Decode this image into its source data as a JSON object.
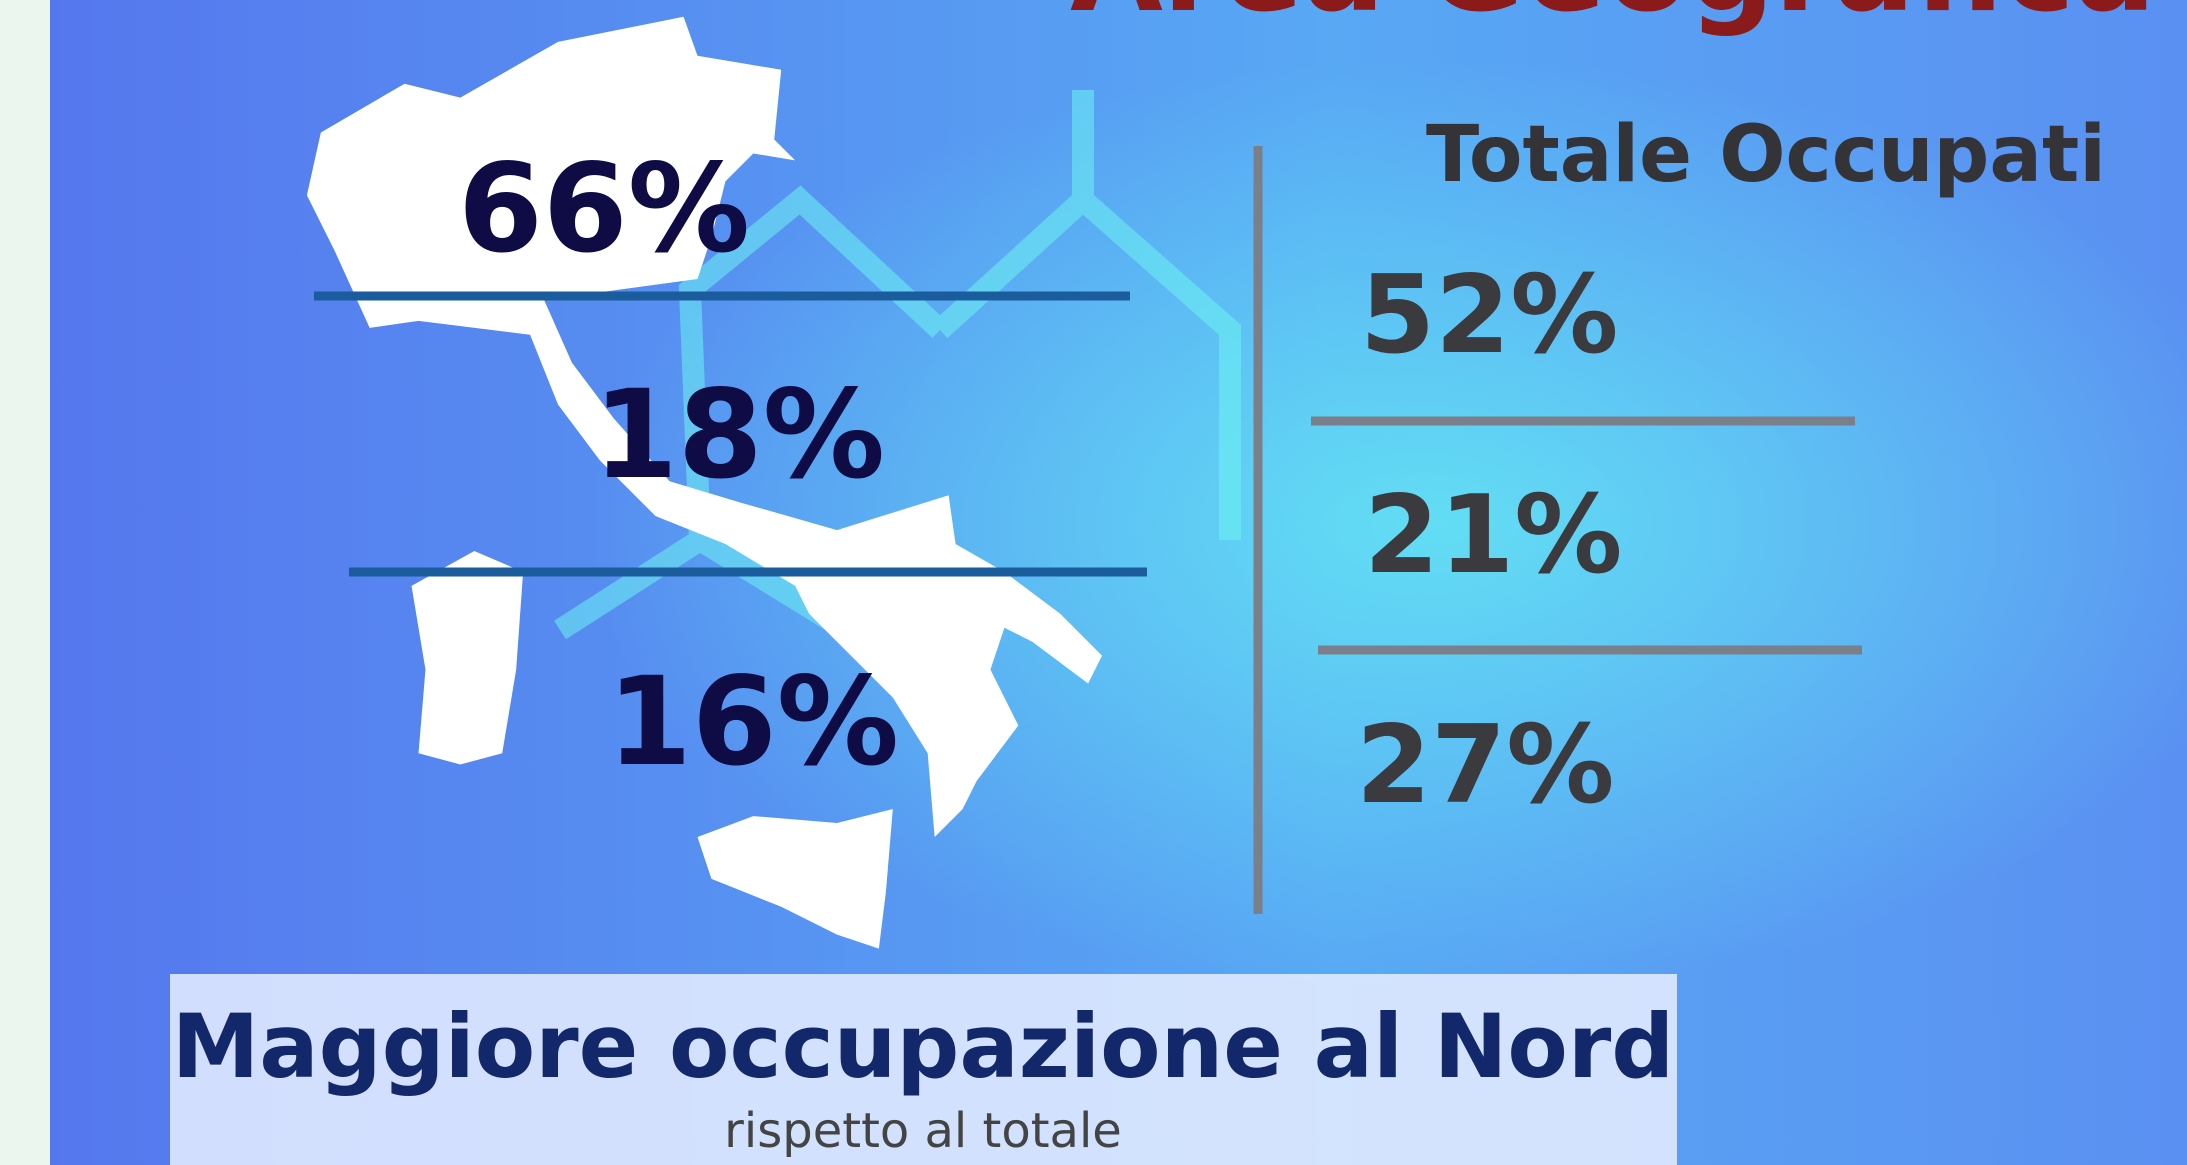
{
  "title": "Area Geografica",
  "map": {
    "regions": [
      "66%",
      "18%",
      "16%"
    ]
  },
  "totals": {
    "heading": "Totale Occupati",
    "values": [
      "52%",
      "21%",
      "27%"
    ]
  },
  "caption": {
    "title": "Maggiore occupazione al Nord",
    "subtitle": "rispetto al totale"
  }
}
